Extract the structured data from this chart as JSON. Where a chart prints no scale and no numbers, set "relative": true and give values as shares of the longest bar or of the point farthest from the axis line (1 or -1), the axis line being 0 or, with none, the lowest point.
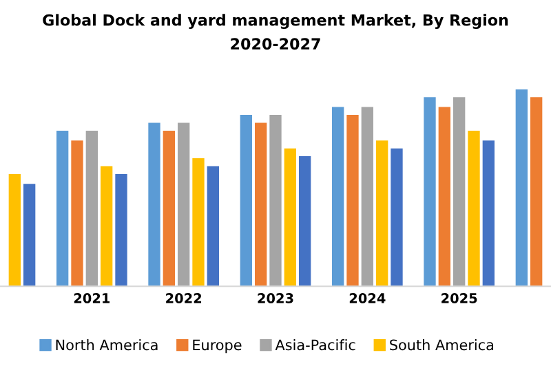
{
  "chart_data": {
    "type": "bar",
    "title": "Global Dock and yard management Market, By Region",
    "subtitle": "2020-2027",
    "relative": true,
    "categories": [
      null,
      "2021",
      "2022",
      "2023",
      "2024",
      "2025",
      null
    ],
    "series": [
      {
        "name": "North America",
        "color": "#5b9bd5",
        "values": [
          null,
          0.79,
          0.83,
          0.87,
          0.91,
          0.96,
          1.0
        ]
      },
      {
        "name": "Europe",
        "color": "#ed7d31",
        "values": [
          null,
          0.74,
          0.79,
          0.83,
          0.87,
          0.91,
          0.96
        ]
      },
      {
        "name": "Asia-Pacific",
        "color": "#a5a5a5",
        "values": [
          null,
          0.79,
          0.83,
          0.87,
          0.91,
          0.96,
          null
        ]
      },
      {
        "name": "South America",
        "color": "#ffc000",
        "values": [
          0.57,
          0.61,
          0.65,
          0.7,
          0.74,
          0.79,
          null
        ]
      },
      {
        "color": "#4472c4",
        "values": [
          0.52,
          0.57,
          0.61,
          0.66,
          0.7,
          0.74,
          null
        ]
      }
    ],
    "legend": "bottom",
    "grid": false
  }
}
